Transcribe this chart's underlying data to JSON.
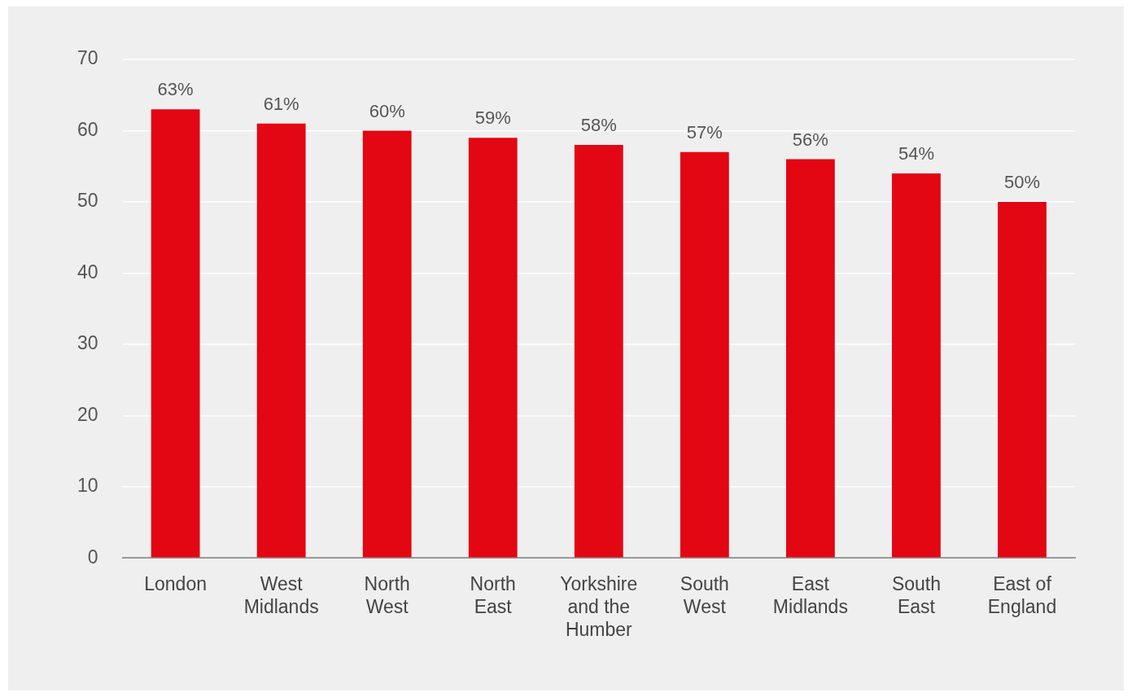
{
  "chart_data": {
    "type": "bar",
    "categories": [
      "London",
      "West Midlands",
      "North West",
      "North East",
      "Yorkshire and the Humber",
      "South West",
      "East Midlands",
      "South East",
      "East of England"
    ],
    "values": [
      63,
      61,
      60,
      59,
      58,
      57,
      56,
      54,
      50
    ],
    "value_labels": [
      "63%",
      "61%",
      "60%",
      "59%",
      "58%",
      "57%",
      "56%",
      "54%",
      "50%"
    ],
    "color": "#e30613",
    "ylim": [
      0,
      70
    ],
    "yticks": [
      0,
      10,
      20,
      30,
      40,
      50,
      60,
      70
    ],
    "grid": "y",
    "legend": false
  }
}
